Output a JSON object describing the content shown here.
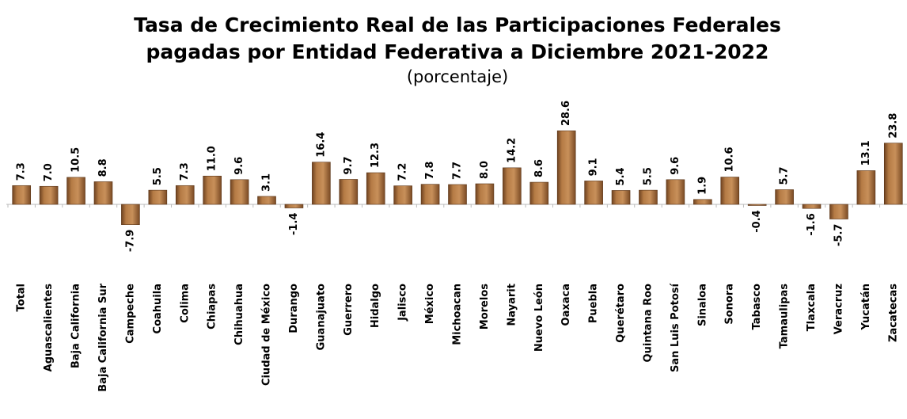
{
  "chart_data": {
    "type": "bar",
    "title": [
      "Tasa de Crecimiento Real de las Participaciones Federales",
      "pagadas por Entidad Federativa a Diciembre 2021-2022"
    ],
    "subtitle": "(porcentaje)",
    "categories": [
      "Total",
      "Aguascalientes",
      "Baja California",
      "Baja California Sur",
      "Campeche",
      "Coahuila",
      "Colima",
      "Chiapas",
      "Chihuahua",
      "Ciudad de México",
      "Durango",
      "Guanajuato",
      "Guerrero",
      "Hidalgo",
      "Jalisco",
      "México",
      "Michoacan",
      "Morelos",
      "Nayarit",
      "Nuevo León",
      "Oaxaca",
      "Puebla",
      "Querétaro",
      "Quintana Roo",
      "San Luis Potosí",
      "Sinaloa",
      "Sonora",
      "Tabasco",
      "Tamaulipas",
      "Tlaxcala",
      "Veracruz",
      "Yucatán",
      "Zacatecas"
    ],
    "values": [
      7.3,
      7.0,
      10.5,
      8.8,
      -7.9,
      5.5,
      7.3,
      11.0,
      9.6,
      3.1,
      -1.4,
      16.4,
      9.7,
      12.3,
      7.2,
      7.8,
      7.7,
      8.0,
      14.2,
      8.6,
      28.6,
      9.1,
      5.4,
      5.5,
      9.6,
      1.9,
      10.6,
      -0.4,
      5.7,
      -1.6,
      -5.7,
      13.1,
      23.8
    ],
    "value_labels": [
      "7.3",
      "7.0",
      "10.5",
      "8.8",
      "-7.9",
      "5.5",
      "7.3",
      "11.0",
      "9.6",
      "3.1",
      "-1.4",
      "16.4",
      "9.7",
      "12.3",
      "7.2",
      "7.8",
      "7.7",
      "8.0",
      "14.2",
      "8.6",
      "28.6",
      "9.1",
      "5.4",
      "5.5",
      "9.6",
      "1.9",
      "10.6",
      "-0.4",
      "5.7",
      "-1.6",
      "-5.7",
      "13.1",
      "23.8"
    ],
    "color": "#a8703c"
  }
}
